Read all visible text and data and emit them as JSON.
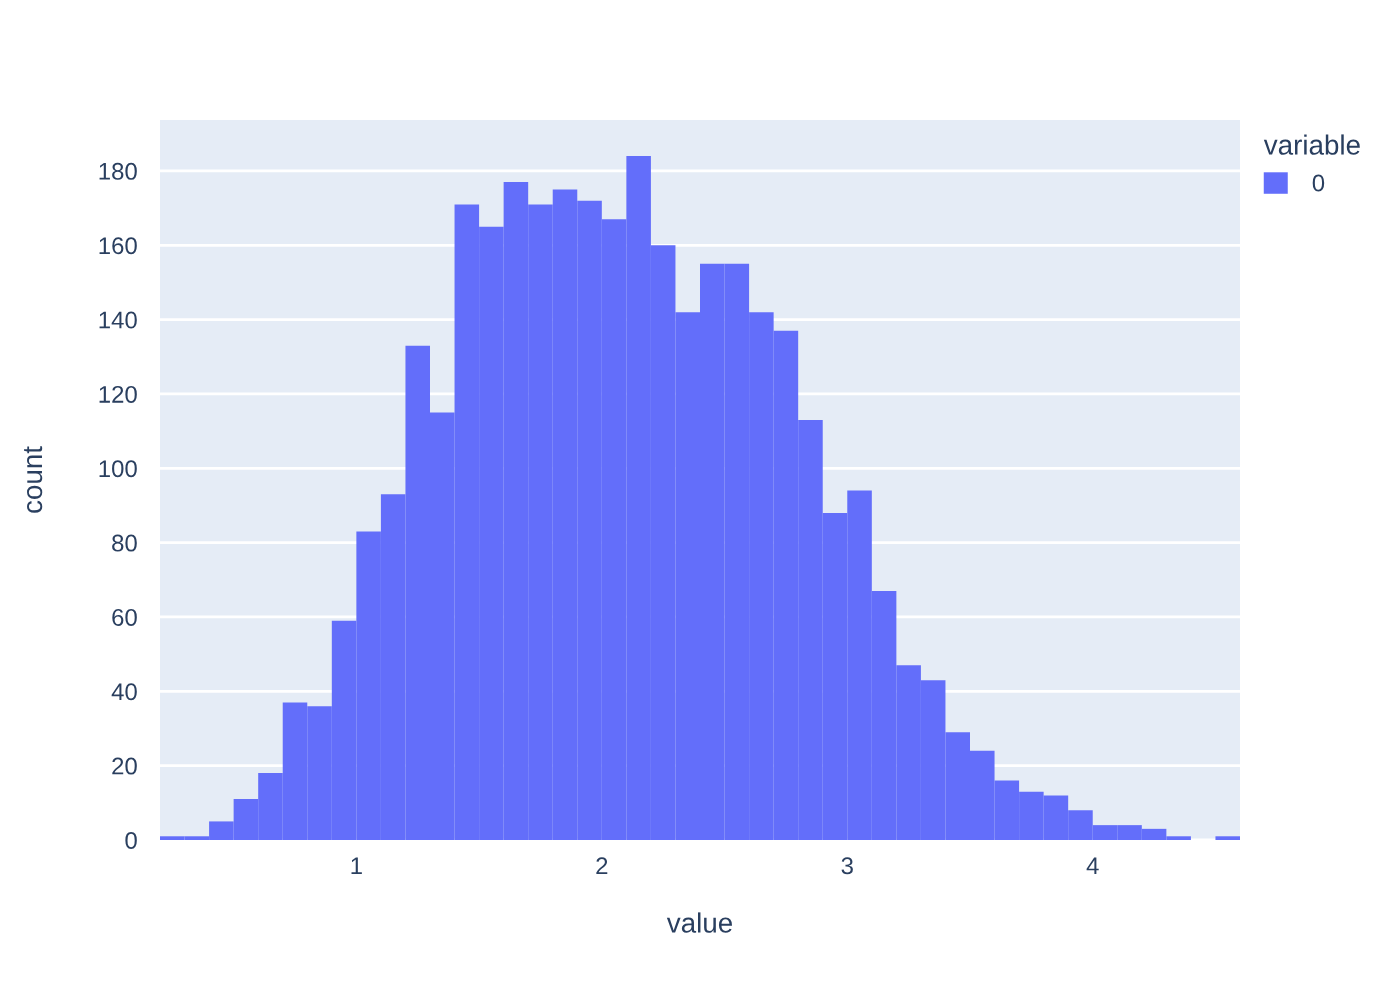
{
  "chart_data": {
    "type": "histogram",
    "xlabel": "value",
    "ylabel": "count",
    "legend_title": "variable",
    "bins": [
      0.2,
      0.3,
      0.4,
      0.5,
      0.6,
      0.7,
      0.8,
      0.9,
      1.0,
      1.1,
      1.2,
      1.3,
      1.4,
      1.5,
      1.6,
      1.7,
      1.8,
      1.9,
      2.0,
      2.1,
      2.2,
      2.3,
      2.4,
      2.5,
      2.6,
      2.7,
      2.8,
      2.9,
      3.0,
      3.1,
      3.2,
      3.3,
      3.4,
      3.5,
      3.6,
      3.7,
      3.8,
      3.9,
      4.0,
      4.1,
      4.2,
      4.3,
      4.4,
      4.5,
      4.6
    ],
    "series": [
      {
        "name": "0",
        "color": "#636efa",
        "values": [
          1,
          1,
          5,
          11,
          18,
          37,
          36,
          59,
          83,
          93,
          133,
          115,
          171,
          165,
          177,
          171,
          175,
          172,
          167,
          184,
          160,
          142,
          155,
          155,
          142,
          137,
          113,
          88,
          94,
          67,
          47,
          43,
          29,
          24,
          16,
          13,
          12,
          8,
          4,
          4,
          3,
          1,
          0,
          1
        ]
      }
    ],
    "xlim": [
      0.2,
      4.6
    ],
    "ylim": [
      0,
      193.7
    ],
    "xticks": [
      1,
      2,
      3,
      4
    ],
    "yticks": [
      0,
      20,
      40,
      60,
      80,
      100,
      120,
      140,
      160,
      180
    ],
    "grid": "y",
    "legend": "top right"
  }
}
